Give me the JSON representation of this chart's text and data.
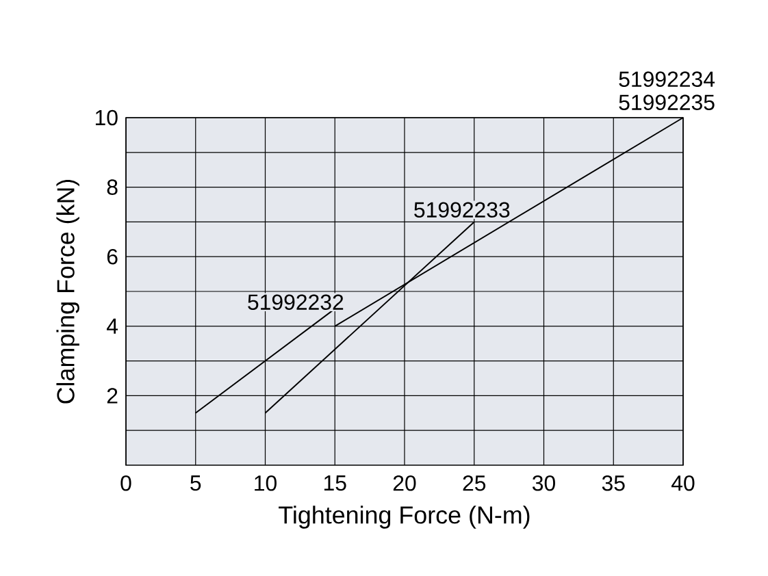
{
  "chart_data": {
    "type": "line",
    "xlabel": "Tightening Force (N-m)",
    "ylabel": "Clamping Force (kN)",
    "xlim": [
      0,
      40
    ],
    "ylim": [
      0,
      10
    ],
    "xticks": [
      0,
      5,
      10,
      15,
      20,
      25,
      30,
      35,
      40
    ],
    "yticks": [
      {
        "value": 1,
        "label": null
      },
      2,
      {
        "value": 3,
        "label": null
      },
      4,
      {
        "value": 5,
        "label": null
      },
      6,
      {
        "value": 7,
        "label": null
      },
      8,
      {
        "value": 9,
        "label": null
      },
      10
    ],
    "grid": true,
    "series": [
      {
        "name": "51992232",
        "color": "#000000",
        "x": [
          5,
          15
        ],
        "values": [
          1.5,
          4.5
        ]
      },
      {
        "name": "51992233",
        "color": "#000000",
        "x": [
          10,
          25
        ],
        "values": [
          1.5,
          7
        ]
      },
      {
        "name": "51992234 51992235",
        "color": "#000000",
        "x": [
          15,
          40
        ],
        "values": [
          4,
          10
        ]
      }
    ]
  }
}
